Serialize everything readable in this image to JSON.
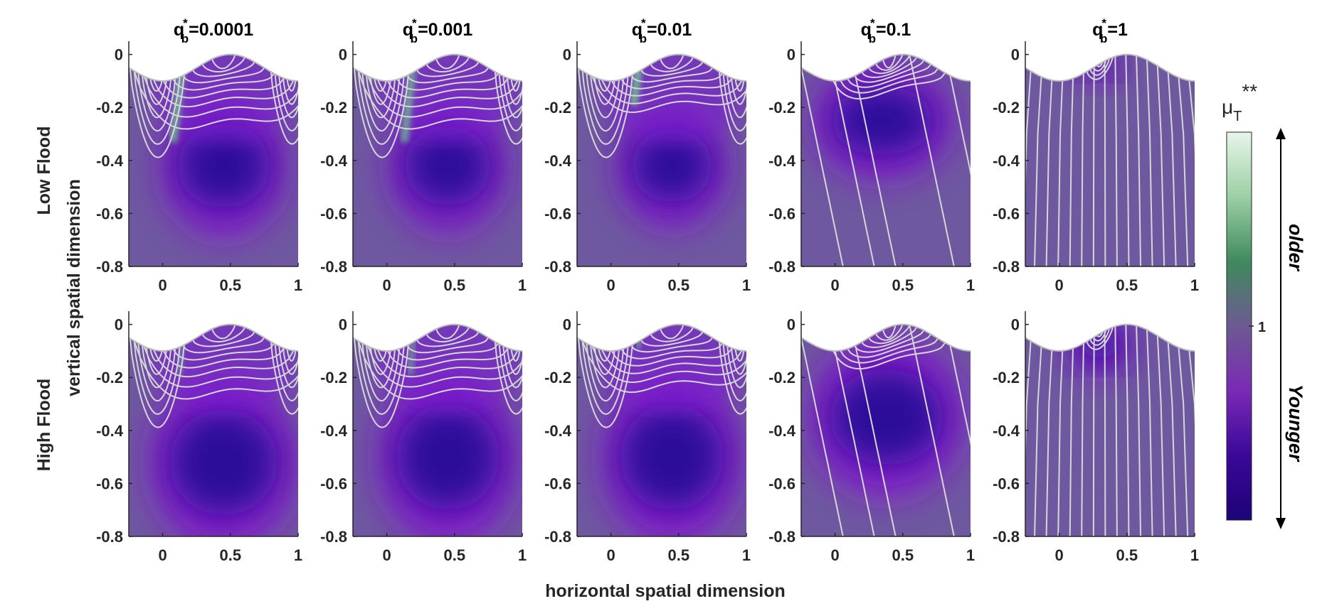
{
  "figure": {
    "column_titles": [
      {
        "base": "q",
        "sup": "*",
        "sub": "b",
        "value": "=0.0001"
      },
      {
        "base": "q",
        "sup": "*",
        "sub": "b",
        "value": "=0.001"
      },
      {
        "base": "q",
        "sup": "*",
        "sub": "b",
        "value": "=0.01"
      },
      {
        "base": "q",
        "sup": "*",
        "sub": "b",
        "value": "=0.1"
      },
      {
        "base": "q",
        "sup": "*",
        "sub": "b",
        "value": "=1"
      }
    ],
    "row_labels": [
      "Low Flood",
      "High Flood"
    ],
    "xlabel": "horizontal spatial dimension",
    "ylabel": "vertical spatial dimension",
    "x_ticks": [
      "0",
      "0.5",
      "1"
    ],
    "y_ticks": [
      "0",
      "-0.2",
      "-0.4",
      "-0.6",
      "-0.8"
    ],
    "colorbar": {
      "label_base": "μ",
      "label_sub": "T",
      "label_sup": "**",
      "tick": "1",
      "arrow_top": "older",
      "arrow_bottom": "Younger",
      "colors": [
        "#e8f5ea",
        "#9ccfa5",
        "#3f8a5d",
        "#6d5a92",
        "#7a2ab5",
        "#3a0898",
        "#1c0378"
      ]
    },
    "xlim": [
      -0.25,
      1.0
    ],
    "ylim": [
      -0.8,
      0.05
    ],
    "colors": {
      "background": "#6e58a0",
      "deep": "#2a0a9a",
      "violet": "#8a12d0",
      "streamline": "#d6d6d6",
      "axis": "#262626"
    },
    "panels": [
      {
        "row": 0,
        "col": 0,
        "mode": "cells",
        "count": 11,
        "cellDepth": 0.05,
        "grow": 1.22,
        "mainN": 9,
        "deepBlob": [
          0.45,
          -0.42,
          0.34,
          0.16
        ],
        "greenStreak": [
          0.15,
          0.0,
          0.08,
          -0.32,
          0.8
        ]
      },
      {
        "row": 0,
        "col": 1,
        "mode": "cells",
        "count": 11,
        "cellDepth": 0.05,
        "grow": 1.22,
        "mainN": 9,
        "deepBlob": [
          0.45,
          -0.42,
          0.32,
          0.15
        ],
        "greenStreak": [
          0.2,
          0.0,
          0.13,
          -0.32,
          0.75
        ]
      },
      {
        "row": 0,
        "col": 2,
        "mode": "cells",
        "count": 11,
        "cellDepth": 0.05,
        "grow": 1.2,
        "mainN": 8,
        "deepBlob": [
          0.45,
          -0.42,
          0.3,
          0.14
        ],
        "greenStreak": [
          0.22,
          0.0,
          0.17,
          -0.18,
          0.85
        ]
      },
      {
        "row": 0,
        "col": 3,
        "mode": "mixed",
        "count": 12,
        "grow": 1.18,
        "deepBlob": [
          0.35,
          -0.25,
          0.38,
          0.13
        ]
      },
      {
        "row": 0,
        "col": 4,
        "mode": "vertical",
        "count": 16,
        "deepBlob": [
          0.3,
          -0.04,
          0.12,
          0.035
        ]
      },
      {
        "row": 1,
        "col": 0,
        "mode": "cells",
        "count": 11,
        "cellDepth": 0.05,
        "grow": 1.22,
        "mainN": 9,
        "deepBlob": [
          0.45,
          -0.52,
          0.4,
          0.2
        ],
        "greenStreak": [
          0.15,
          0.0,
          0.12,
          -0.18,
          0.4
        ]
      },
      {
        "row": 1,
        "col": 1,
        "mode": "cells",
        "count": 11,
        "cellDepth": 0.05,
        "grow": 1.22,
        "mainN": 9,
        "deepBlob": [
          0.45,
          -0.5,
          0.38,
          0.2
        ],
        "greenStreak": [
          0.2,
          0.0,
          0.17,
          -0.18,
          0.5
        ]
      },
      {
        "row": 1,
        "col": 2,
        "mode": "cells",
        "count": 11,
        "cellDepth": 0.05,
        "grow": 1.2,
        "mainN": 9,
        "deepBlob": [
          0.45,
          -0.5,
          0.38,
          0.2
        ],
        "greenStreak": [
          0.22,
          0.0,
          0.2,
          -0.08,
          0.5
        ]
      },
      {
        "row": 1,
        "col": 3,
        "mode": "mixed",
        "count": 13,
        "grow": 1.18,
        "deepBlob": [
          0.38,
          -0.35,
          0.42,
          0.18
        ]
      },
      {
        "row": 1,
        "col": 4,
        "mode": "vertical",
        "count": 16,
        "deepBlob": [
          0.3,
          -0.08,
          0.18,
          0.06
        ]
      }
    ]
  }
}
